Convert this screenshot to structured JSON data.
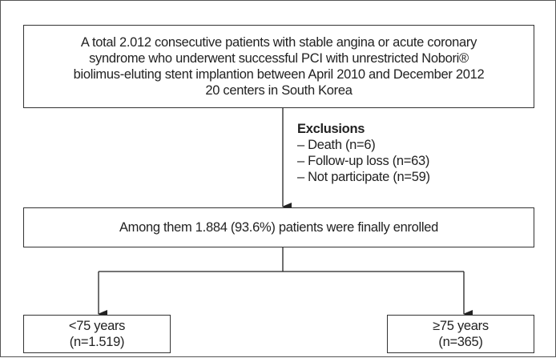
{
  "nodes": [
    {
      "lines": [
        "A total 2.012 consecutive patients with stable angina or acute coronary",
        "syndrome who underwent successful PCI with unrestricted Nobori®",
        "biolimus-eluting stent implantion between April 2010 and December 2012",
        "20 centers in South Korea"
      ]
    },
    {
      "lines": [
        "Among them 1.884 (93.6%) patients were finally enrolled"
      ]
    },
    {
      "lines": [
        "<75 years",
        "(n=1.519)"
      ]
    },
    {
      "lines": [
        "≥75 years",
        "(n=365)"
      ]
    }
  ],
  "exclusions": {
    "title": "Exclusions",
    "items": [
      "– Death (n=6)",
      "– Follow-up loss (n=63)",
      "– Not participate (n=59)"
    ]
  }
}
